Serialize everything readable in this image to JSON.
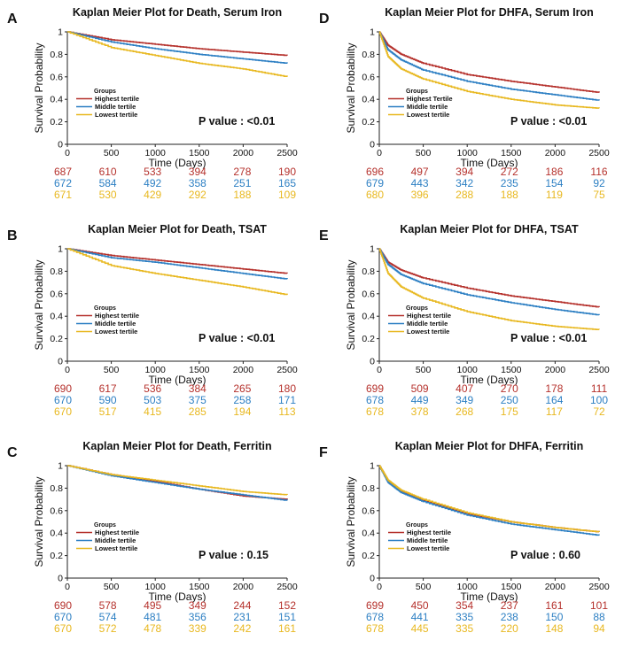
{
  "colors": {
    "high": "#b5312c",
    "mid": "#2c7fc3",
    "low": "#e8b820"
  },
  "common": {
    "xlabel": "Time (Days)",
    "ylabel": "Survival Probability",
    "legend_title": "Groups",
    "legend": [
      "Highest tertile",
      "Middle tertile",
      "Lowest tertile"
    ],
    "xticks": [
      "0",
      "500",
      "1000",
      "1500",
      "2000",
      "2500"
    ],
    "yticks": [
      "0",
      "0.2",
      "0.4",
      "0.6",
      "0.8",
      "1"
    ]
  },
  "chart_data": [
    {
      "id": "A",
      "label": "A",
      "type": "line",
      "title": "Kaplan Meier Plot for Death, Serum Iron",
      "pvalue": "P value : <0.01",
      "xlim": [
        0,
        2500
      ],
      "ylim": [
        0,
        1
      ],
      "series": [
        {
          "name": "Highest tertile",
          "x": [
            0,
            500,
            1000,
            1500,
            2000,
            2500
          ],
          "y": [
            1,
            0.93,
            0.89,
            0.85,
            0.82,
            0.79
          ]
        },
        {
          "name": "Middle tertile",
          "x": [
            0,
            500,
            1000,
            1500,
            2000,
            2500
          ],
          "y": [
            1,
            0.91,
            0.85,
            0.8,
            0.76,
            0.72
          ]
        },
        {
          "name": "Lowest tertile",
          "x": [
            0,
            500,
            1000,
            1500,
            2000,
            2500
          ],
          "y": [
            1,
            0.86,
            0.79,
            0.72,
            0.67,
            0.6
          ]
        }
      ],
      "risk": [
        [
          "687",
          "610",
          "533",
          "394",
          "278",
          "190"
        ],
        [
          "672",
          "584",
          "492",
          "358",
          "251",
          "165"
        ],
        [
          "671",
          "530",
          "429",
          "292",
          "188",
          "109"
        ]
      ]
    },
    {
      "id": "D",
      "label": "D",
      "type": "line",
      "title": "Kaplan Meier Plot for DHFA, Serum Iron",
      "pvalue": "P value : <0.01",
      "xlim": [
        0,
        2500
      ],
      "ylim": [
        0,
        1
      ],
      "series": [
        {
          "name": "Highest Tertile",
          "x": [
            0,
            100,
            250,
            500,
            1000,
            1500,
            2000,
            2500
          ],
          "y": [
            1,
            0.88,
            0.8,
            0.72,
            0.62,
            0.56,
            0.51,
            0.46
          ]
        },
        {
          "name": "Middle tertile",
          "x": [
            0,
            100,
            250,
            500,
            1000,
            1500,
            2000,
            2500
          ],
          "y": [
            1,
            0.84,
            0.75,
            0.66,
            0.56,
            0.49,
            0.44,
            0.39
          ]
        },
        {
          "name": "Lowest tertile",
          "x": [
            0,
            100,
            250,
            500,
            1000,
            1500,
            2000,
            2500
          ],
          "y": [
            1,
            0.78,
            0.67,
            0.58,
            0.47,
            0.4,
            0.35,
            0.32
          ]
        }
      ],
      "risk": [
        [
          "696",
          "497",
          "394",
          "272",
          "186",
          "116"
        ],
        [
          "679",
          "443",
          "342",
          "235",
          "154",
          "92"
        ],
        [
          "680",
          "396",
          "288",
          "188",
          "119",
          "75"
        ]
      ]
    },
    {
      "id": "B",
      "label": "B",
      "type": "line",
      "title": "Kaplan Meier Plot for Death, TSAT",
      "pvalue": "P value : <0.01",
      "xlim": [
        0,
        2500
      ],
      "ylim": [
        0,
        1
      ],
      "series": [
        {
          "name": "Highest tertile",
          "x": [
            0,
            500,
            1000,
            1500,
            2000,
            2500
          ],
          "y": [
            1,
            0.94,
            0.9,
            0.86,
            0.82,
            0.78
          ]
        },
        {
          "name": "Middle tertile",
          "x": [
            0,
            500,
            1000,
            1500,
            2000,
            2500
          ],
          "y": [
            1,
            0.92,
            0.88,
            0.83,
            0.78,
            0.73
          ]
        },
        {
          "name": "Lowest tertile",
          "x": [
            0,
            500,
            1000,
            1500,
            2000,
            2500
          ],
          "y": [
            1,
            0.85,
            0.78,
            0.72,
            0.66,
            0.59
          ]
        }
      ],
      "risk": [
        [
          "690",
          "617",
          "536",
          "384",
          "265",
          "180"
        ],
        [
          "670",
          "590",
          "503",
          "375",
          "258",
          "171"
        ],
        [
          "670",
          "517",
          "415",
          "285",
          "194",
          "113"
        ]
      ]
    },
    {
      "id": "E",
      "label": "E",
      "type": "line",
      "title": "Kaplan Meier Plot for DHFA, TSAT",
      "pvalue": "P value : <0.01",
      "xlim": [
        0,
        2500
      ],
      "ylim": [
        0,
        1
      ],
      "series": [
        {
          "name": "Highest tertile",
          "x": [
            0,
            100,
            250,
            500,
            1000,
            1500,
            2000,
            2500
          ],
          "y": [
            1,
            0.88,
            0.81,
            0.74,
            0.65,
            0.58,
            0.53,
            0.48
          ]
        },
        {
          "name": "Middle tertile",
          "x": [
            0,
            100,
            250,
            500,
            1000,
            1500,
            2000,
            2500
          ],
          "y": [
            1,
            0.86,
            0.77,
            0.69,
            0.59,
            0.52,
            0.46,
            0.41
          ]
        },
        {
          "name": "Lowest tertile",
          "x": [
            0,
            100,
            250,
            500,
            1000,
            1500,
            2000,
            2500
          ],
          "y": [
            1,
            0.78,
            0.66,
            0.56,
            0.44,
            0.36,
            0.31,
            0.28
          ]
        }
      ],
      "risk": [
        [
          "699",
          "509",
          "407",
          "270",
          "178",
          "111"
        ],
        [
          "678",
          "449",
          "349",
          "250",
          "164",
          "100"
        ],
        [
          "678",
          "378",
          "268",
          "175",
          "117",
          "72"
        ]
      ]
    },
    {
      "id": "C",
      "label": "C",
      "type": "line",
      "title": "Kaplan Meier Plot for Death, Ferritin",
      "pvalue": "P value : 0.15",
      "xlim": [
        0,
        2500
      ],
      "ylim": [
        0,
        1
      ],
      "series": [
        {
          "name": "Highest tertile",
          "x": [
            0,
            500,
            1000,
            1500,
            2000,
            2500
          ],
          "y": [
            1,
            0.92,
            0.86,
            0.79,
            0.73,
            0.7
          ]
        },
        {
          "name": "Middle tertile",
          "x": [
            0,
            500,
            1000,
            1500,
            2000,
            2500
          ],
          "y": [
            1,
            0.91,
            0.85,
            0.79,
            0.74,
            0.69
          ]
        },
        {
          "name": "Lowest tertile",
          "x": [
            0,
            500,
            1000,
            1500,
            2000,
            2500
          ],
          "y": [
            1,
            0.92,
            0.87,
            0.82,
            0.77,
            0.74
          ]
        }
      ],
      "risk": [
        [
          "690",
          "578",
          "495",
          "349",
          "244",
          "152"
        ],
        [
          "670",
          "574",
          "481",
          "356",
          "231",
          "151"
        ],
        [
          "670",
          "572",
          "478",
          "339",
          "242",
          "161"
        ]
      ]
    },
    {
      "id": "F",
      "label": "F",
      "type": "line",
      "title": "Kaplan Meier Plot for DHFA, Ferritin",
      "pvalue": "P value : 0.60",
      "xlim": [
        0,
        2500
      ],
      "ylim": [
        0,
        1
      ],
      "series": [
        {
          "name": "Highest tertile",
          "x": [
            0,
            100,
            250,
            500,
            1000,
            1500,
            2000,
            2500
          ],
          "y": [
            1,
            0.86,
            0.77,
            0.69,
            0.57,
            0.5,
            0.45,
            0.41
          ]
        },
        {
          "name": "Middle tertile",
          "x": [
            0,
            100,
            250,
            500,
            1000,
            1500,
            2000,
            2500
          ],
          "y": [
            1,
            0.85,
            0.76,
            0.68,
            0.56,
            0.48,
            0.43,
            0.38
          ]
        },
        {
          "name": "Lowest tertile",
          "x": [
            0,
            100,
            250,
            500,
            1000,
            1500,
            2000,
            2500
          ],
          "y": [
            1,
            0.87,
            0.78,
            0.7,
            0.58,
            0.5,
            0.45,
            0.41
          ]
        }
      ],
      "risk": [
        [
          "699",
          "450",
          "354",
          "237",
          "161",
          "101"
        ],
        [
          "678",
          "441",
          "335",
          "238",
          "150",
          "88"
        ],
        [
          "678",
          "445",
          "335",
          "220",
          "148",
          "94"
        ]
      ]
    }
  ]
}
